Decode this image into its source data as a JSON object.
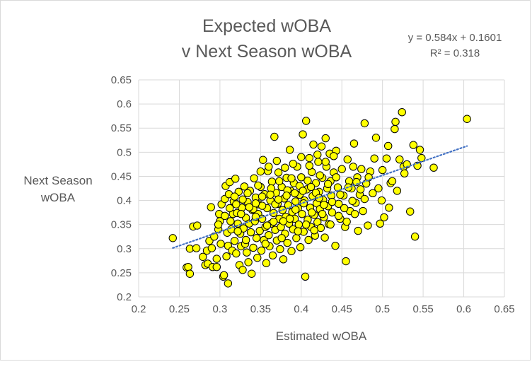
{
  "chart_data": {
    "type": "scatter",
    "title_lines": [
      "Expected wOBA",
      "v Next Season wOBA"
    ],
    "xlabel": "Estimated wOBA",
    "ylabel_lines": [
      "Next Season",
      "wOBA"
    ],
    "xlim": [
      0.2,
      0.65
    ],
    "ylim": [
      0.2,
      0.65
    ],
    "x_ticks": [
      "0.2",
      "0.25",
      "0.3",
      "0.35",
      "0.4",
      "0.45",
      "0.5",
      "0.55",
      "0.6",
      "0.65"
    ],
    "y_ticks": [
      "0.2",
      "0.25",
      "0.3",
      "0.35",
      "0.4",
      "0.45",
      "0.5",
      "0.55",
      "0.6",
      "0.65"
    ],
    "grid": true,
    "marker_fill": "#ffff00",
    "marker_stroke": "#000000",
    "trendline_color": "#4472c4",
    "trendline": {
      "slope": 0.584,
      "intercept": 0.1601,
      "x_range": [
        0.242,
        0.604
      ]
    },
    "equation_text": "y = 0.584x + 0.1601",
    "r2_text": "R² = 0.318",
    "points": [
      [
        0.242,
        0.322
      ],
      [
        0.259,
        0.261
      ],
      [
        0.261,
        0.262
      ],
      [
        0.263,
        0.248
      ],
      [
        0.263,
        0.3
      ],
      [
        0.267,
        0.346
      ],
      [
        0.271,
        0.301
      ],
      [
        0.272,
        0.348
      ],
      [
        0.279,
        0.283
      ],
      [
        0.282,
        0.266
      ],
      [
        0.284,
        0.296
      ],
      [
        0.285,
        0.269
      ],
      [
        0.287,
        0.316
      ],
      [
        0.289,
        0.386
      ],
      [
        0.29,
        0.301
      ],
      [
        0.291,
        0.262
      ],
      [
        0.293,
        0.325
      ],
      [
        0.296,
        0.262
      ],
      [
        0.296,
        0.279
      ],
      [
        0.298,
        0.34
      ],
      [
        0.299,
        0.372
      ],
      [
        0.3,
        0.357
      ],
      [
        0.301,
        0.31
      ],
      [
        0.302,
        0.392
      ],
      [
        0.304,
        0.242
      ],
      [
        0.305,
        0.245
      ],
      [
        0.306,
        0.403
      ],
      [
        0.307,
        0.43
      ],
      [
        0.308,
        0.284
      ],
      [
        0.309,
        0.333
      ],
      [
        0.31,
        0.228
      ],
      [
        0.31,
        0.306
      ],
      [
        0.311,
        0.413
      ],
      [
        0.312,
        0.438
      ],
      [
        0.313,
        0.357
      ],
      [
        0.314,
        0.34
      ],
      [
        0.315,
        0.296
      ],
      [
        0.316,
        0.372
      ],
      [
        0.317,
        0.398
      ],
      [
        0.318,
        0.316
      ],
      [
        0.319,
        0.445
      ],
      [
        0.32,
        0.29
      ],
      [
        0.321,
        0.374
      ],
      [
        0.322,
        0.352
      ],
      [
        0.323,
        0.418
      ],
      [
        0.324,
        0.266
      ],
      [
        0.325,
        0.331
      ],
      [
        0.326,
        0.305
      ],
      [
        0.327,
        0.385
      ],
      [
        0.328,
        0.256
      ],
      [
        0.329,
        0.342
      ],
      [
        0.33,
        0.429
      ],
      [
        0.331,
        0.31
      ],
      [
        0.332,
        0.364
      ],
      [
        0.333,
        0.292
      ],
      [
        0.334,
        0.397
      ],
      [
        0.335,
        0.272
      ],
      [
        0.336,
        0.352
      ],
      [
        0.337,
        0.42
      ],
      [
        0.338,
        0.334
      ],
      [
        0.339,
        0.248
      ],
      [
        0.34,
        0.38
      ],
      [
        0.341,
        0.302
      ],
      [
        0.342,
        0.446
      ],
      [
        0.343,
        0.357
      ],
      [
        0.344,
        0.406
      ],
      [
        0.345,
        0.322
      ],
      [
        0.346,
        0.281
      ],
      [
        0.347,
        0.372
      ],
      [
        0.348,
        0.392
      ],
      [
        0.349,
        0.337
      ],
      [
        0.35,
        0.428
      ],
      [
        0.351,
        0.296
      ],
      [
        0.352,
        0.362
      ],
      [
        0.353,
        0.484
      ],
      [
        0.354,
        0.318
      ],
      [
        0.355,
        0.413
      ],
      [
        0.356,
        0.345
      ],
      [
        0.357,
        0.27
      ],
      [
        0.358,
        0.384
      ],
      [
        0.359,
        0.461
      ],
      [
        0.36,
        0.328
      ],
      [
        0.361,
        0.305
      ],
      [
        0.362,
        0.4
      ],
      [
        0.363,
        0.352
      ],
      [
        0.364,
        0.439
      ],
      [
        0.365,
        0.286
      ],
      [
        0.366,
        0.374
      ],
      [
        0.367,
        0.532
      ],
      [
        0.368,
        0.339
      ],
      [
        0.369,
        0.416
      ],
      [
        0.37,
        0.317
      ],
      [
        0.371,
        0.393
      ],
      [
        0.372,
        0.458
      ],
      [
        0.373,
        0.362
      ],
      [
        0.374,
        0.299
      ],
      [
        0.375,
        0.345
      ],
      [
        0.376,
        0.428
      ],
      [
        0.377,
        0.38
      ],
      [
        0.378,
        0.278
      ],
      [
        0.379,
        0.404
      ],
      [
        0.38,
        0.331
      ],
      [
        0.381,
        0.366
      ],
      [
        0.382,
        0.447
      ],
      [
        0.383,
        0.312
      ],
      [
        0.384,
        0.39
      ],
      [
        0.385,
        0.352
      ],
      [
        0.386,
        0.505
      ],
      [
        0.387,
        0.42
      ],
      [
        0.388,
        0.295
      ],
      [
        0.389,
        0.376
      ],
      [
        0.39,
        0.34
      ],
      [
        0.391,
        0.436
      ],
      [
        0.392,
        0.362
      ],
      [
        0.393,
        0.398
      ],
      [
        0.394,
        0.322
      ],
      [
        0.395,
        0.47
      ],
      [
        0.396,
        0.384
      ],
      [
        0.397,
        0.35
      ],
      [
        0.398,
        0.412
      ],
      [
        0.399,
        0.303
      ],
      [
        0.4,
        0.448
      ],
      [
        0.401,
        0.372
      ],
      [
        0.402,
        0.537
      ],
      [
        0.403,
        0.335
      ],
      [
        0.404,
        0.4
      ],
      [
        0.405,
        0.242
      ],
      [
        0.406,
        0.565
      ],
      [
        0.407,
        0.423
      ],
      [
        0.408,
        0.36
      ],
      [
        0.409,
        0.318
      ],
      [
        0.41,
        0.488
      ],
      [
        0.411,
        0.385
      ],
      [
        0.412,
        0.345
      ],
      [
        0.413,
        0.459
      ],
      [
        0.414,
        0.409
      ],
      [
        0.415,
        0.516
      ],
      [
        0.416,
        0.37
      ],
      [
        0.417,
        0.327
      ],
      [
        0.418,
        0.436
      ],
      [
        0.419,
        0.394
      ],
      [
        0.42,
        0.355
      ],
      [
        0.421,
        0.48
      ],
      [
        0.422,
        0.418
      ],
      [
        0.423,
        0.382
      ],
      [
        0.424,
        0.343
      ],
      [
        0.425,
        0.512
      ],
      [
        0.426,
        0.447
      ],
      [
        0.427,
        0.401
      ],
      [
        0.428,
        0.365
      ],
      [
        0.429,
        0.323
      ],
      [
        0.43,
        0.529
      ],
      [
        0.431,
        0.47
      ],
      [
        0.432,
        0.425
      ],
      [
        0.433,
        0.388
      ],
      [
        0.434,
        0.351
      ],
      [
        0.435,
        0.497
      ],
      [
        0.436,
        0.44
      ],
      [
        0.437,
        0.41
      ],
      [
        0.438,
        0.375
      ],
      [
        0.44,
        0.458
      ],
      [
        0.442,
        0.306
      ],
      [
        0.443,
        0.503
      ],
      [
        0.445,
        0.427
      ],
      [
        0.446,
        0.393
      ],
      [
        0.448,
        0.362
      ],
      [
        0.45,
        0.465
      ],
      [
        0.452,
        0.41
      ],
      [
        0.454,
        0.345
      ],
      [
        0.455,
        0.274
      ],
      [
        0.457,
        0.485
      ],
      [
        0.459,
        0.44
      ],
      [
        0.46,
        0.378
      ],
      [
        0.462,
        0.425
      ],
      [
        0.464,
        0.47
      ],
      [
        0.465,
        0.518
      ],
      [
        0.467,
        0.395
      ],
      [
        0.469,
        0.448
      ],
      [
        0.47,
        0.337
      ],
      [
        0.472,
        0.412
      ],
      [
        0.474,
        0.465
      ],
      [
        0.476,
        0.378
      ],
      [
        0.478,
        0.56
      ],
      [
        0.48,
        0.435
      ],
      [
        0.482,
        0.348
      ],
      [
        0.485,
        0.46
      ],
      [
        0.488,
        0.415
      ],
      [
        0.49,
        0.487
      ],
      [
        0.492,
        0.53
      ],
      [
        0.495,
        0.425
      ],
      [
        0.497,
        0.352
      ],
      [
        0.499,
        0.4
      ],
      [
        0.5,
        0.463
      ],
      [
        0.502,
        0.365
      ],
      [
        0.505,
        0.487
      ],
      [
        0.507,
        0.513
      ],
      [
        0.508,
        0.385
      ],
      [
        0.51,
        0.436
      ],
      [
        0.512,
        0.44
      ],
      [
        0.515,
        0.548
      ],
      [
        0.516,
        0.563
      ],
      [
        0.518,
        0.42
      ],
      [
        0.521,
        0.485
      ],
      [
        0.524,
        0.583
      ],
      [
        0.526,
        0.47
      ],
      [
        0.527,
        0.456
      ],
      [
        0.53,
        0.475
      ],
      [
        0.534,
        0.377
      ],
      [
        0.538,
        0.515
      ],
      [
        0.54,
        0.325
      ],
      [
        0.543,
        0.472
      ],
      [
        0.546,
        0.505
      ],
      [
        0.548,
        0.488
      ],
      [
        0.563,
        0.468
      ],
      [
        0.604,
        0.569
      ],
      [
        0.318,
        0.408
      ],
      [
        0.326,
        0.372
      ],
      [
        0.334,
        0.415
      ],
      [
        0.341,
        0.382
      ],
      [
        0.347,
        0.431
      ],
      [
        0.352,
        0.389
      ],
      [
        0.358,
        0.348
      ],
      [
        0.363,
        0.425
      ],
      [
        0.368,
        0.392
      ],
      [
        0.373,
        0.44
      ],
      [
        0.378,
        0.357
      ],
      [
        0.383,
        0.421
      ],
      [
        0.388,
        0.446
      ],
      [
        0.393,
        0.381
      ],
      [
        0.398,
        0.43
      ],
      [
        0.403,
        0.394
      ],
      [
        0.408,
        0.441
      ],
      [
        0.413,
        0.375
      ],
      [
        0.418,
        0.416
      ],
      [
        0.423,
        0.452
      ],
      [
        0.428,
        0.391
      ],
      [
        0.433,
        0.434
      ],
      [
        0.438,
        0.397
      ],
      [
        0.443,
        0.448
      ],
      [
        0.448,
        0.412
      ],
      [
        0.453,
        0.384
      ],
      [
        0.458,
        0.427
      ],
      [
        0.463,
        0.399
      ],
      [
        0.468,
        0.438
      ],
      [
        0.473,
        0.423
      ],
      [
        0.478,
        0.403
      ],
      [
        0.483,
        0.448
      ],
      [
        0.322,
        0.336
      ],
      [
        0.332,
        0.318
      ],
      [
        0.344,
        0.366
      ],
      [
        0.356,
        0.31
      ],
      [
        0.366,
        0.356
      ],
      [
        0.376,
        0.322
      ],
      [
        0.386,
        0.362
      ],
      [
        0.396,
        0.336
      ],
      [
        0.406,
        0.35
      ],
      [
        0.416,
        0.338
      ],
      [
        0.426,
        0.372
      ],
      [
        0.436,
        0.35
      ],
      [
        0.446,
        0.368
      ],
      [
        0.456,
        0.356
      ],
      [
        0.466,
        0.372
      ],
      [
        0.35,
        0.46
      ],
      [
        0.36,
        0.47
      ],
      [
        0.37,
        0.482
      ],
      [
        0.38,
        0.468
      ],
      [
        0.39,
        0.476
      ],
      [
        0.4,
        0.49
      ],
      [
        0.41,
        0.472
      ],
      [
        0.42,
        0.495
      ],
      [
        0.43,
        0.48
      ],
      [
        0.44,
        0.492
      ],
      [
        0.298,
        0.35
      ],
      [
        0.306,
        0.368
      ],
      [
        0.312,
        0.384
      ],
      [
        0.32,
        0.392
      ],
      [
        0.328,
        0.402
      ],
      [
        0.336,
        0.386
      ],
      [
        0.344,
        0.394
      ],
      [
        0.352,
        0.408
      ],
      [
        0.362,
        0.412
      ],
      [
        0.372,
        0.402
      ],
      [
        0.382,
        0.41
      ],
      [
        0.392,
        0.415
      ],
      [
        0.402,
        0.42
      ],
      [
        0.412,
        0.428
      ],
      [
        0.422,
        0.405
      ]
    ]
  }
}
